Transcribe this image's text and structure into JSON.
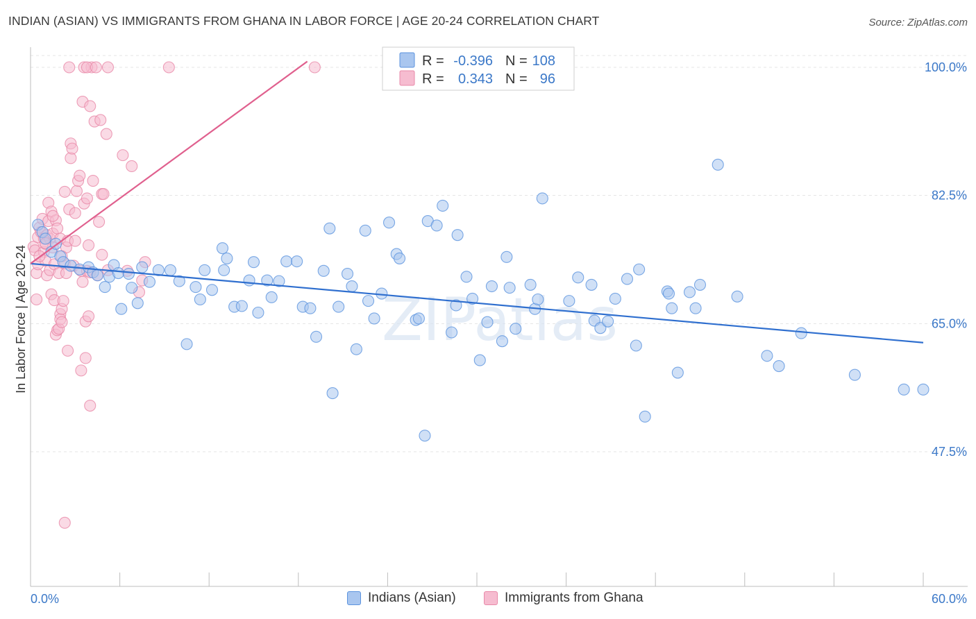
{
  "title": "INDIAN (ASIAN) VS IMMIGRANTS FROM GHANA IN LABOR FORCE | AGE 20-24 CORRELATION CHART",
  "source": "Source: ZipAtlas.com",
  "watermark": "ZIPatlas",
  "colors": {
    "blue_fill": "#a9c6ef",
    "blue_stroke": "#5b93de",
    "blue_line": "#2f6fcf",
    "pink_fill": "#f6bcd0",
    "pink_stroke": "#e888a8",
    "pink_line": "#e0608e",
    "tick_text": "#3b78c8"
  },
  "legend": {
    "r_label": "R =",
    "n_label": "N =",
    "rows": [
      {
        "r": "-0.396",
        "n": "108"
      },
      {
        "r": "0.343",
        "n": "96"
      }
    ]
  },
  "bottom_legend": [
    "Indians (Asian)",
    "Immigrants from Ghana"
  ],
  "chart_data": {
    "type": "scatter",
    "title": "INDIAN (ASIAN) VS IMMIGRANTS FROM GHANA IN LABOR FORCE | AGE 20-24 CORRELATION CHART",
    "xlabel": "",
    "ylabel": "In Labor Force | Age 20-24",
    "xlim": [
      0,
      60
    ],
    "ylim": [
      30,
      102
    ],
    "x_tick_labels": [
      "0.0%",
      "60.0%"
    ],
    "y_ticks": [
      47.5,
      65.0,
      82.5,
      100.0
    ],
    "y_tick_labels": [
      "47.5%",
      "65.0%",
      "82.5%",
      "100.0%"
    ],
    "grid": true,
    "legend_position": "top-center",
    "series": [
      {
        "name": "Indians (Asian)",
        "r": -0.396,
        "n": 108,
        "trend": [
          [
            0,
            73.2
          ],
          [
            60,
            62.4
          ]
        ],
        "points": [
          [
            0.5,
            78.5
          ],
          [
            0.8,
            77.5
          ],
          [
            1.0,
            76.6
          ],
          [
            1.4,
            74.8
          ],
          [
            1.7,
            75.9
          ],
          [
            2.0,
            74.2
          ],
          [
            2.2,
            73.4
          ],
          [
            2.7,
            72.9
          ],
          [
            3.3,
            72.4
          ],
          [
            3.9,
            72.7
          ],
          [
            4.2,
            72.0
          ],
          [
            4.5,
            71.6
          ],
          [
            5.0,
            70.0
          ],
          [
            5.3,
            71.4
          ],
          [
            5.6,
            73.0
          ],
          [
            5.9,
            71.9
          ],
          [
            6.1,
            67.0
          ],
          [
            6.6,
            71.8
          ],
          [
            6.8,
            69.9
          ],
          [
            7.2,
            67.8
          ],
          [
            7.5,
            72.7
          ],
          [
            8.0,
            70.7
          ],
          [
            8.6,
            72.3
          ],
          [
            9.4,
            72.3
          ],
          [
            10.0,
            70.8
          ],
          [
            10.5,
            62.2
          ],
          [
            11.1,
            70.0
          ],
          [
            11.4,
            68.3
          ],
          [
            11.7,
            72.3
          ],
          [
            12.2,
            69.6
          ],
          [
            12.9,
            75.3
          ],
          [
            13.0,
            72.3
          ],
          [
            13.2,
            73.9
          ],
          [
            13.7,
            67.3
          ],
          [
            14.2,
            67.4
          ],
          [
            14.7,
            70.9
          ],
          [
            15.0,
            73.4
          ],
          [
            15.3,
            66.5
          ],
          [
            15.9,
            70.9
          ],
          [
            16.2,
            68.6
          ],
          [
            16.7,
            70.8
          ],
          [
            17.2,
            73.5
          ],
          [
            17.9,
            73.5
          ],
          [
            18.3,
            67.3
          ],
          [
            18.8,
            67.1
          ],
          [
            19.2,
            63.2
          ],
          [
            19.7,
            72.2
          ],
          [
            20.1,
            78.0
          ],
          [
            20.3,
            55.5
          ],
          [
            20.7,
            67.3
          ],
          [
            21.3,
            71.8
          ],
          [
            21.6,
            70.1
          ],
          [
            21.9,
            61.5
          ],
          [
            22.5,
            77.7
          ],
          [
            22.7,
            68.1
          ],
          [
            23.1,
            65.7
          ],
          [
            23.6,
            69.1
          ],
          [
            24.1,
            78.8
          ],
          [
            24.6,
            74.5
          ],
          [
            24.8,
            73.9
          ],
          [
            25.9,
            65.5
          ],
          [
            26.1,
            65.7
          ],
          [
            26.5,
            49.7
          ],
          [
            26.7,
            79.0
          ],
          [
            27.3,
            78.4
          ],
          [
            27.7,
            81.1
          ],
          [
            28.3,
            63.8
          ],
          [
            28.6,
            67.5
          ],
          [
            28.7,
            77.1
          ],
          [
            29.3,
            71.4
          ],
          [
            29.7,
            68.4
          ],
          [
            30.2,
            60.0
          ],
          [
            30.7,
            65.2
          ],
          [
            31.0,
            70.1
          ],
          [
            31.7,
            62.6
          ],
          [
            32.0,
            74.1
          ],
          [
            32.2,
            69.9
          ],
          [
            32.6,
            64.3
          ],
          [
            33.6,
            70.3
          ],
          [
            33.9,
            67.0
          ],
          [
            34.1,
            68.3
          ],
          [
            34.4,
            82.1
          ],
          [
            36.2,
            68.1
          ],
          [
            36.8,
            71.3
          ],
          [
            37.7,
            70.3
          ],
          [
            37.9,
            65.4
          ],
          [
            38.3,
            64.4
          ],
          [
            38.8,
            65.3
          ],
          [
            39.3,
            68.4
          ],
          [
            40.1,
            71.1
          ],
          [
            40.7,
            62.0
          ],
          [
            40.9,
            72.4
          ],
          [
            41.3,
            52.3
          ],
          [
            42.8,
            69.4
          ],
          [
            42.9,
            69.1
          ],
          [
            43.1,
            67.1
          ],
          [
            43.5,
            58.3
          ],
          [
            44.3,
            69.3
          ],
          [
            44.7,
            67.1
          ],
          [
            45.0,
            70.3
          ],
          [
            46.2,
            86.7
          ],
          [
            47.5,
            68.7
          ],
          [
            49.5,
            60.6
          ],
          [
            50.3,
            59.2
          ],
          [
            51.8,
            63.7
          ],
          [
            55.4,
            58.0
          ],
          [
            58.7,
            56.0
          ],
          [
            60.0,
            56.0
          ]
        ]
      },
      {
        "name": "Immigrants from Ghana",
        "r": 0.343,
        "n": 96,
        "trend": [
          [
            0,
            73.2
          ],
          [
            18.6,
            100.8
          ]
        ],
        "points": [
          [
            0.2,
            75.5
          ],
          [
            0.3,
            75.0
          ],
          [
            0.4,
            68.3
          ],
          [
            0.4,
            71.9
          ],
          [
            0.5,
            73.1
          ],
          [
            0.5,
            76.8
          ],
          [
            0.6,
            78.1
          ],
          [
            0.7,
            77.5
          ],
          [
            0.8,
            79.3
          ],
          [
            0.9,
            76.6
          ],
          [
            0.9,
            74.8
          ],
          [
            1.0,
            75.9
          ],
          [
            1.0,
            73.6
          ],
          [
            1.1,
            71.6
          ],
          [
            1.1,
            77.1
          ],
          [
            1.2,
            79.0
          ],
          [
            1.2,
            81.5
          ],
          [
            1.3,
            72.3
          ],
          [
            1.3,
            76.6
          ],
          [
            1.4,
            80.3
          ],
          [
            1.4,
            69.0
          ],
          [
            1.5,
            77.3
          ],
          [
            1.5,
            75.4
          ],
          [
            1.6,
            68.2
          ],
          [
            1.6,
            73.1
          ],
          [
            1.7,
            63.5
          ],
          [
            1.7,
            79.1
          ],
          [
            1.8,
            78.0
          ],
          [
            1.8,
            64.1
          ],
          [
            1.9,
            71.9
          ],
          [
            1.9,
            64.3
          ],
          [
            2.0,
            66.3
          ],
          [
            2.0,
            65.6
          ],
          [
            2.0,
            76.6
          ],
          [
            2.1,
            65.2
          ],
          [
            2.1,
            67.0
          ],
          [
            2.2,
            68.1
          ],
          [
            2.3,
            83.0
          ],
          [
            2.3,
            73.2
          ],
          [
            2.4,
            75.4
          ],
          [
            2.4,
            71.9
          ],
          [
            2.5,
            61.3
          ],
          [
            2.5,
            76.3
          ],
          [
            2.6,
            80.6
          ],
          [
            2.7,
            89.6
          ],
          [
            2.7,
            87.6
          ],
          [
            2.8,
            88.9
          ],
          [
            2.9,
            72.9
          ],
          [
            3.0,
            80.1
          ],
          [
            3.0,
            76.3
          ],
          [
            3.1,
            83.1
          ],
          [
            3.2,
            84.5
          ],
          [
            3.3,
            85.2
          ],
          [
            3.4,
            58.6
          ],
          [
            3.4,
            72.2
          ],
          [
            3.5,
            95.3
          ],
          [
            3.5,
            70.7
          ],
          [
            3.6,
            81.4
          ],
          [
            3.7,
            65.3
          ],
          [
            3.7,
            60.3
          ],
          [
            3.8,
            72.2
          ],
          [
            3.8,
            82.1
          ],
          [
            3.9,
            66.0
          ],
          [
            3.9,
            75.7
          ],
          [
            4.0,
            94.7
          ],
          [
            4.0,
            72.0
          ],
          [
            4.0,
            53.8
          ],
          [
            4.1,
            100.0
          ],
          [
            4.2,
            84.5
          ],
          [
            4.3,
            92.6
          ],
          [
            4.5,
            71.6
          ],
          [
            4.6,
            78.9
          ],
          [
            4.7,
            92.8
          ],
          [
            4.8,
            82.7
          ],
          [
            4.8,
            74.4
          ],
          [
            4.9,
            82.7
          ],
          [
            5.1,
            90.9
          ],
          [
            5.2,
            72.3
          ],
          [
            5.2,
            100.0
          ],
          [
            6.2,
            88.0
          ],
          [
            6.5,
            72.2
          ],
          [
            6.8,
            86.5
          ],
          [
            7.3,
            69.3
          ],
          [
            7.5,
            70.9
          ],
          [
            7.7,
            73.4
          ],
          [
            2.6,
            100.0
          ],
          [
            3.6,
            100.0
          ],
          [
            3.8,
            100.0
          ],
          [
            4.4,
            100.0
          ],
          [
            9.3,
            100.0
          ],
          [
            1.5,
            79.7
          ],
          [
            2.1,
            74.2
          ],
          [
            2.3,
            37.8
          ],
          [
            0.6,
            74.2
          ],
          [
            19.1,
            100.0
          ],
          [
            1.0,
            76.0
          ]
        ]
      }
    ]
  }
}
